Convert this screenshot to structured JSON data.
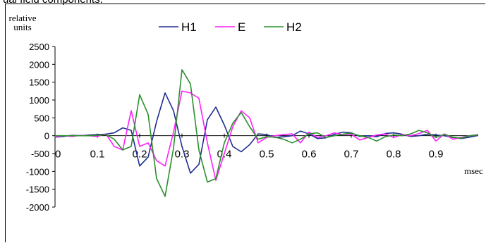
{
  "page": {
    "top_fragment": "ual field components."
  },
  "chart_data": {
    "type": "line",
    "ylabel": [
      "relative",
      "units"
    ],
    "xlabel": "msec",
    "x_ticks": [
      0,
      0.1,
      0.2,
      0.3,
      0.4,
      0.5,
      0.6,
      0.7,
      0.8,
      0.9
    ],
    "x_tick_labels": [
      "0",
      "0.1",
      "0.2",
      "0.3",
      "0.4",
      "0.5",
      "0.6",
      "0.7",
      "0.8",
      "0.9"
    ],
    "y_ticks": [
      2500,
      2000,
      1500,
      1000,
      500,
      0,
      -500,
      -1000,
      -1500,
      -2000
    ],
    "y_tick_labels": [
      "2500",
      "2000",
      "1500",
      "1000",
      "500",
      "0",
      "-500",
      "-1000",
      "-1500",
      "-2000"
    ],
    "xlim": [
      0,
      1.0
    ],
    "ylim": [
      -2000,
      2500
    ],
    "grid": false,
    "legend_position": "top-center",
    "x": [
      0,
      0.02,
      0.04,
      0.06,
      0.08,
      0.1,
      0.12,
      0.14,
      0.16,
      0.18,
      0.2,
      0.22,
      0.24,
      0.26,
      0.28,
      0.3,
      0.32,
      0.34,
      0.36,
      0.38,
      0.4,
      0.42,
      0.44,
      0.46,
      0.48,
      0.5,
      0.52,
      0.54,
      0.56,
      0.58,
      0.6,
      0.62,
      0.64,
      0.66,
      0.68,
      0.7,
      0.72,
      0.74,
      0.76,
      0.78,
      0.8,
      0.82,
      0.84,
      0.86,
      0.88,
      0.9,
      0.92,
      0.94,
      0.96,
      0.98,
      1.0
    ],
    "series": [
      {
        "name": "H1",
        "color": "#1f2f8f",
        "values": [
          -40,
          -20,
          10,
          0,
          20,
          30,
          40,
          80,
          220,
          150,
          -850,
          -600,
          400,
          1200,
          700,
          -300,
          -1050,
          -800,
          450,
          800,
          300,
          -300,
          -450,
          -250,
          50,
          30,
          -50,
          -30,
          0,
          130,
          50,
          -80,
          -60,
          40,
          100,
          80,
          -20,
          0,
          -30,
          60,
          80,
          40,
          -20,
          0,
          40,
          20,
          0,
          -50,
          -80,
          -40,
          10
        ]
      },
      {
        "name": "E",
        "color": "#ff1fff",
        "values": [
          -30,
          0,
          -20,
          10,
          0,
          -20,
          50,
          -300,
          -400,
          700,
          -300,
          -200,
          -700,
          -850,
          100,
          1250,
          1200,
          1050,
          -200,
          -1250,
          -500,
          250,
          700,
          500,
          -200,
          -50,
          0,
          30,
          50,
          -200,
          100,
          -50,
          0,
          80,
          30,
          40,
          -120,
          -50,
          20,
          50,
          -50,
          30,
          0,
          60,
          150,
          -150,
          50,
          -100,
          -50,
          0,
          30
        ]
      },
      {
        "name": "H2",
        "color": "#2a8f2a",
        "values": [
          0,
          0,
          0,
          0,
          0,
          10,
          30,
          -100,
          -400,
          -300,
          1150,
          600,
          -1200,
          -1700,
          -350,
          1850,
          1450,
          -400,
          -1300,
          -1200,
          -200,
          350,
          650,
          250,
          -100,
          -30,
          -40,
          -100,
          -200,
          -100,
          50,
          80,
          -50,
          0,
          40,
          70,
          0,
          -50,
          -150,
          -30,
          20,
          0,
          50,
          150,
          80,
          -50,
          40,
          -40,
          -70,
          0,
          20
        ]
      }
    ]
  }
}
